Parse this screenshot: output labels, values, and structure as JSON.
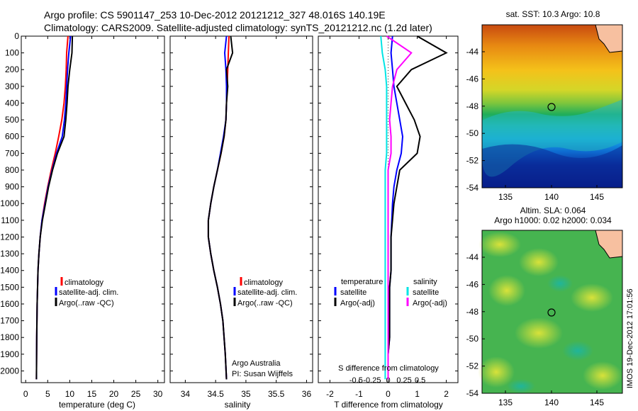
{
  "header": {
    "line1": "Argo profile: CS 5901147_253 10-Dec-2012 20121212_327 48.016S 140.19E",
    "line2": "Climatology: CARS2009. Satellite-adjusted climatology: synTS_20121212.nc (1.2d later)"
  },
  "colors": {
    "climatology": "#ff0000",
    "satellite": "#0000ff",
    "argo": "#000000",
    "sal_satellite": "#00e5e5",
    "sal_argo": "#ff00ff"
  },
  "depth_ticks": [
    0,
    100,
    200,
    300,
    400,
    500,
    600,
    700,
    800,
    900,
    1000,
    1100,
    1200,
    1300,
    1400,
    1500,
    1600,
    1700,
    1800,
    1900,
    2000
  ],
  "panel_temp": {
    "xlabel": "temperature (deg C)",
    "xticks": [
      "0",
      "5",
      "10",
      "15",
      "20",
      "25",
      "30"
    ],
    "legend": [
      "climatology",
      "satellite-adj. clim.",
      "Argo(..raw -QC)"
    ]
  },
  "panel_sal": {
    "xlabel": "salinity",
    "xticks": [
      "34",
      "34.5",
      "35",
      "35.5",
      "36"
    ],
    "legend": [
      "climatology",
      "satellite-adj. clim.",
      "Argo(..raw -QC)"
    ],
    "note1": "Argo Australia",
    "note2": "PI: Susan Wijffels"
  },
  "panel_diff": {
    "xlabel": "T difference from climatology",
    "xlabel_top": "S difference from climatology",
    "xticks_T": [
      "-2",
      "-1",
      "0",
      "1",
      "2"
    ],
    "xticks_S": [
      "-0.5",
      "-0.25",
      "0",
      "0.25",
      "0.5"
    ],
    "legend_temp_title": "temperature",
    "legend_sal_title": "salinity",
    "legend_temp": [
      "satellite",
      "Argo(-adj)"
    ],
    "legend_sal": [
      "satellite",
      "Argo(-adj)"
    ]
  },
  "map_sst": {
    "title": "sat. SST: 10.3  Argo: 10.8",
    "yticks": [
      "-44",
      "-46",
      "-48",
      "-50",
      "-52",
      "-54"
    ],
    "xticks": [
      "135",
      "140",
      "145"
    ]
  },
  "map_sla": {
    "title1": "Altim. SLA: 0.064",
    "title2": "Argo h1000: 0.02 h2000: 0.034",
    "yticks": [
      "-44",
      "-46",
      "-48",
      "-50",
      "-52",
      "-54"
    ],
    "xticks": [
      "135",
      "140",
      "145"
    ]
  },
  "side_stamp": "IMOS 19-Dec-2012 17:01:56",
  "chart_data": [
    {
      "type": "line",
      "title": "",
      "xlabel": "temperature (deg C)",
      "ylabel": "",
      "xlim": [
        -1,
        31.5
      ],
      "ylim": [
        2070,
        0
      ],
      "series": [
        {
          "name": "climatology",
          "x": [
            9.6,
            9.3,
            9.2,
            9.0,
            8.7,
            8.2,
            7.5,
            6.7,
            5.8,
            5.0,
            4.3,
            3.7,
            3.3,
            3.0,
            2.8,
            2.7,
            2.6,
            2.5,
            2.45
          ],
          "y": [
            0,
            100,
            200,
            300,
            400,
            500,
            600,
            700,
            800,
            900,
            1000,
            1100,
            1200,
            1300,
            1400,
            1500,
            1600,
            1800,
            2050
          ]
        },
        {
          "name": "satellite-adj. clim.",
          "x": [
            10.2,
            9.8,
            9.5,
            9.3,
            9.1,
            8.8,
            8.3,
            7.0,
            6.0,
            5.1,
            4.4,
            3.7,
            3.3,
            3.0,
            2.8,
            2.7,
            2.6,
            2.5,
            2.45
          ],
          "y": [
            0,
            100,
            200,
            300,
            400,
            500,
            600,
            700,
            800,
            900,
            1000,
            1100,
            1200,
            1300,
            1400,
            1500,
            1600,
            1800,
            2050
          ]
        },
        {
          "name": "Argo(..raw -QC)",
          "x": [
            10.6,
            10.5,
            10.0,
            9.6,
            9.4,
            9.1,
            8.7,
            7.2,
            6.1,
            5.2,
            4.5,
            3.8,
            3.3,
            3.0,
            2.8,
            2.7,
            2.6,
            2.5,
            2.45
          ],
          "y": [
            0,
            100,
            200,
            300,
            400,
            500,
            600,
            700,
            800,
            900,
            1000,
            1100,
            1200,
            1300,
            1400,
            1500,
            1600,
            1800,
            2050
          ]
        }
      ]
    },
    {
      "type": "line",
      "title": "",
      "xlabel": "salinity",
      "ylabel": "",
      "xlim": [
        33.75,
        36.1
      ],
      "ylim": [
        2070,
        0
      ],
      "series": [
        {
          "name": "climatology",
          "x": [
            34.72,
            34.71,
            34.7,
            34.69,
            34.68,
            34.67,
            34.64,
            34.59,
            34.53,
            34.47,
            34.42,
            34.38,
            34.38,
            34.42,
            34.47,
            34.53,
            34.58,
            34.62,
            34.66,
            34.68
          ],
          "y": [
            0,
            100,
            200,
            300,
            400,
            500,
            600,
            700,
            800,
            900,
            1000,
            1100,
            1200,
            1300,
            1400,
            1500,
            1600,
            1700,
            1900,
            2050
          ]
        },
        {
          "name": "satellite-adj. clim.",
          "x": [
            34.68,
            34.65,
            34.67,
            34.68,
            34.68,
            34.67,
            34.63,
            34.58,
            34.53,
            34.47,
            34.42,
            34.38,
            34.38,
            34.42,
            34.47,
            34.53,
            34.58,
            34.62,
            34.66,
            34.68
          ],
          "y": [
            0,
            100,
            200,
            300,
            400,
            500,
            600,
            700,
            800,
            900,
            1000,
            1100,
            1200,
            1300,
            1400,
            1500,
            1600,
            1700,
            1900,
            2050
          ]
        },
        {
          "name": "Argo(..raw -QC)",
          "x": [
            34.75,
            34.78,
            34.68,
            34.7,
            34.68,
            34.67,
            34.64,
            34.59,
            34.53,
            34.47,
            34.42,
            34.38,
            34.38,
            34.42,
            34.47,
            34.53,
            34.58,
            34.62,
            34.66,
            34.68
          ],
          "y": [
            0,
            100,
            200,
            300,
            400,
            500,
            600,
            700,
            800,
            900,
            1000,
            1100,
            1200,
            1300,
            1400,
            1500,
            1600,
            1700,
            1900,
            2050
          ]
        }
      ]
    },
    {
      "type": "line",
      "title": "",
      "xlabel": "T difference from climatology",
      "ylabel": "",
      "xlim": [
        -2.4,
        2.4
      ],
      "ylim": [
        2070,
        0
      ],
      "series": [
        {
          "name": "temperature satellite",
          "x": [
            0.15,
            0.1,
            0.15,
            0.2,
            0.3,
            0.4,
            0.5,
            0.45,
            0.3,
            0.2,
            0.15,
            0.1,
            0.1,
            0.05,
            0.05,
            0.05,
            0.0,
            0.0
          ],
          "y": [
            0,
            100,
            200,
            300,
            400,
            500,
            600,
            700,
            800,
            900,
            1000,
            1200,
            1400,
            1500,
            1600,
            1800,
            1900,
            2050
          ]
        },
        {
          "name": "temperature Argo(-adj)",
          "x": [
            1.0,
            2.0,
            0.8,
            0.3,
            0.6,
            0.9,
            1.1,
            1.0,
            0.4,
            0.3,
            0.2,
            0.1,
            0.1,
            0.05,
            0.05,
            0.05,
            0.0,
            0.0
          ],
          "y": [
            0,
            100,
            200,
            300,
            400,
            500,
            600,
            700,
            800,
            900,
            1000,
            1200,
            1400,
            1500,
            1600,
            1800,
            1900,
            2050
          ]
        },
        {
          "name": "salinity satellite",
          "x": [
            -0.25,
            -0.2,
            -0.1,
            -0.05,
            -0.05,
            -0.05,
            -0.05,
            -0.05,
            -0.1,
            -0.1,
            -0.1,
            -0.1,
            -0.1,
            -0.1,
            -0.1,
            -0.1,
            -0.1,
            -0.1
          ],
          "y": [
            0,
            100,
            200,
            300,
            400,
            500,
            600,
            700,
            800,
            900,
            1000,
            1200,
            1400,
            1500,
            1600,
            1800,
            1900,
            2050
          ]
        },
        {
          "name": "salinity Argo(-adj)",
          "x": [
            -0.05,
            0.8,
            0.3,
            0.15,
            0.1,
            0.05,
            0.1,
            0.1,
            0.0,
            0.0,
            0.0,
            0.0,
            0.0,
            0.0,
            0.0,
            0.0,
            0.0,
            0.0
          ],
          "y": [
            0,
            100,
            200,
            300,
            400,
            500,
            600,
            700,
            800,
            900,
            1000,
            1200,
            1400,
            1500,
            1600,
            1800,
            1900,
            2050
          ]
        }
      ]
    }
  ]
}
